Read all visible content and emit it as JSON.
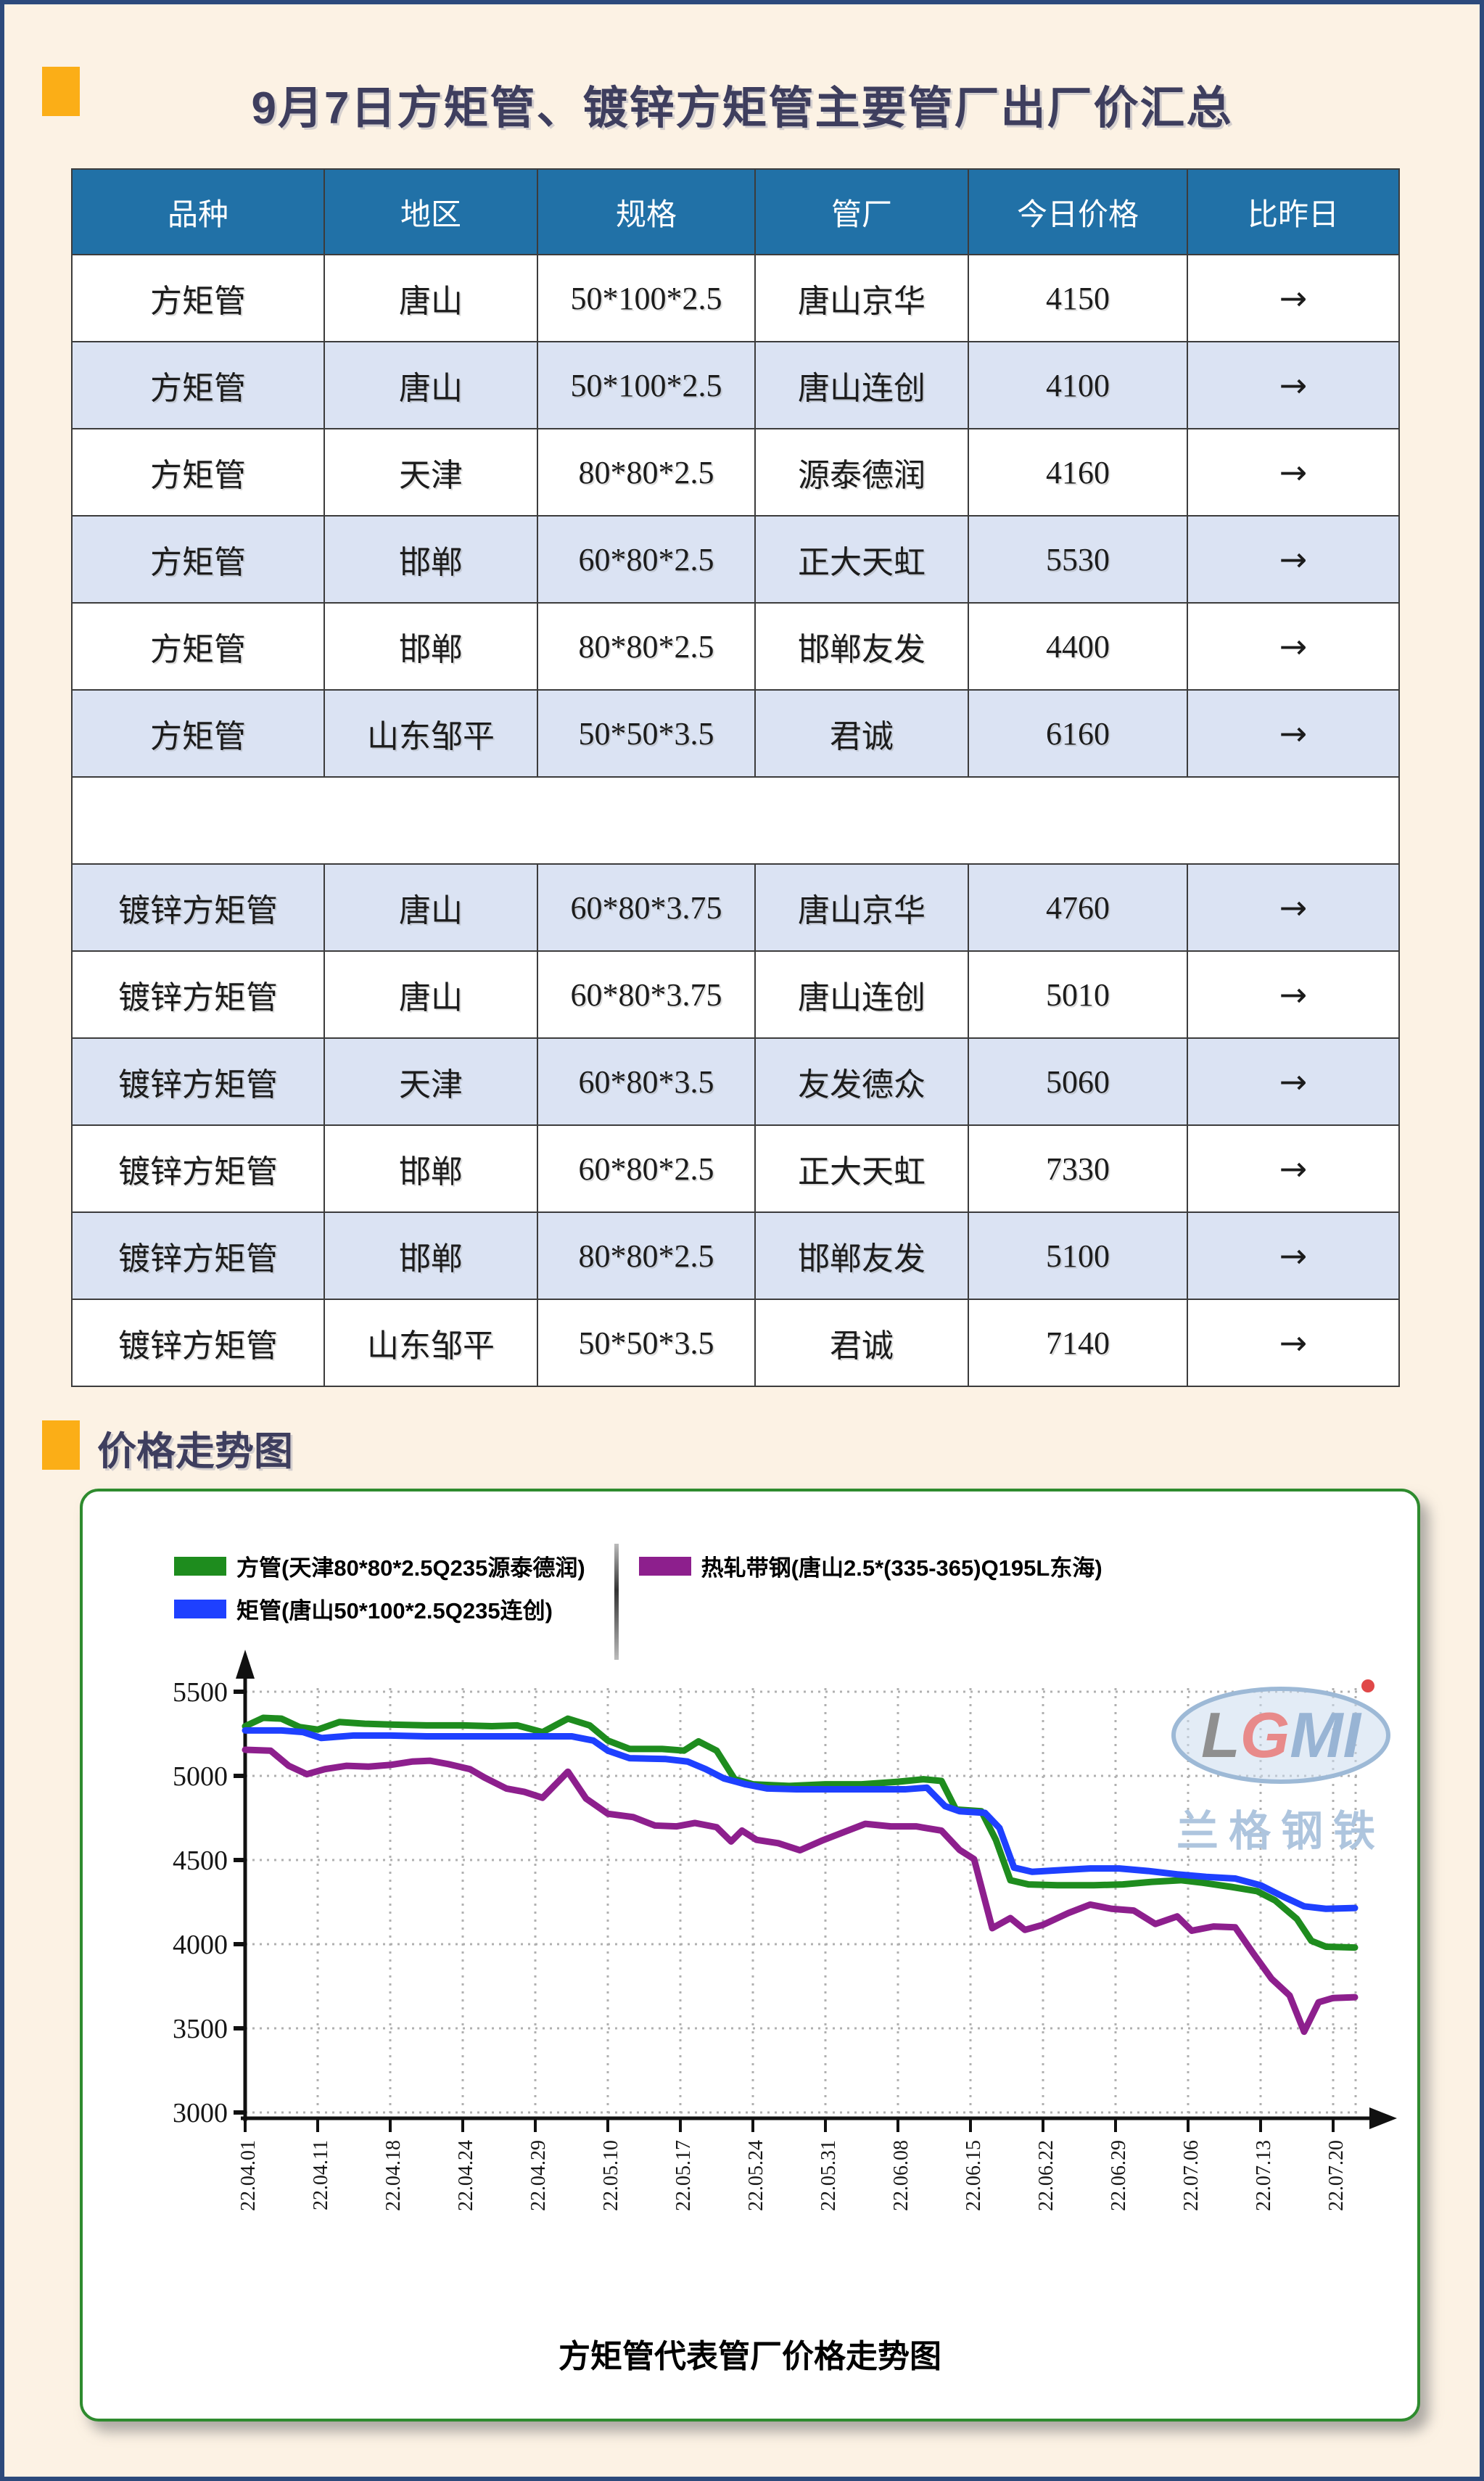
{
  "page": {
    "bg_color": "#fcf2e4",
    "frame_color": "#2c4a7c",
    "accent_color": "#fbae17",
    "title": "9月7日方矩管、镀锌方矩管主要管厂出厂价汇总",
    "title_color": "#3e3e5e",
    "section2_title": "价格走势图"
  },
  "table": {
    "header_bg": "#2171a7",
    "alt_row_bg": "#dbe3f3",
    "headers": [
      "品种",
      "地区",
      "规格",
      "管厂",
      "今日价格",
      "比昨日"
    ],
    "rows": [
      [
        "方矩管",
        "唐山",
        "50*100*2.5",
        "唐山京华",
        "4150",
        "→"
      ],
      [
        "方矩管",
        "唐山",
        "50*100*2.5",
        "唐山连创",
        "4100",
        "→"
      ],
      [
        "方矩管",
        "天津",
        "80*80*2.5",
        "源泰德润",
        "4160",
        "→"
      ],
      [
        "方矩管",
        "邯郸",
        "60*80*2.5",
        "正大天虹",
        "5530",
        "→"
      ],
      [
        "方矩管",
        "邯郸",
        "80*80*2.5",
        "邯郸友发",
        "4400",
        "→"
      ],
      [
        "方矩管",
        "山东邹平",
        "50*50*3.5",
        "君诚",
        "6160",
        "→"
      ],
      [],
      [
        "镀锌方矩管",
        "唐山",
        "60*80*3.75",
        "唐山京华",
        "4760",
        "→"
      ],
      [
        "镀锌方矩管",
        "唐山",
        "60*80*3.75",
        "唐山连创",
        "5010",
        "→"
      ],
      [
        "镀锌方矩管",
        "天津",
        "60*80*3.5",
        "友发德众",
        "5060",
        "→"
      ],
      [
        "镀锌方矩管",
        "邯郸",
        "60*80*2.5",
        "正大天虹",
        "7330",
        "→"
      ],
      [
        "镀锌方矩管",
        "邯郸",
        "80*80*2.5",
        "邯郸友发",
        "5100",
        "→"
      ],
      [
        "镀锌方矩管",
        "山东邹平",
        "50*50*3.5",
        "君诚",
        "7140",
        "→"
      ]
    ]
  },
  "chart_data": {
    "type": "line",
    "title": "方矩管代表管厂价格走势图",
    "xlabel": "",
    "ylabel": "",
    "ylim": [
      3000,
      5500
    ],
    "y_ticks": [
      3000,
      3500,
      4000,
      4500,
      5000,
      5500
    ],
    "x_tick_labels": [
      "22.04.01",
      "22.04.11",
      "22.04.18",
      "22.04.24",
      "22.04.29",
      "22.05.10",
      "22.05.17",
      "22.05.24",
      "22.05.31",
      "22.06.08",
      "22.06.15",
      "22.06.22",
      "22.06.29",
      "22.07.06",
      "22.07.13",
      "22.07.20"
    ],
    "grid": true,
    "legend_position": "top",
    "grid_color": "#b0b0b0",
    "series": [
      {
        "name": "方管(天津80*80*2.5Q235源泰德润)",
        "color": "#1e8c1e",
        "points": [
          [
            0,
            5295
          ],
          [
            0.25,
            5345
          ],
          [
            0.5,
            5340
          ],
          [
            0.75,
            5290
          ],
          [
            1,
            5275
          ],
          [
            1.3,
            5320
          ],
          [
            1.65,
            5310
          ],
          [
            2,
            5305
          ],
          [
            2.5,
            5300
          ],
          [
            3,
            5300
          ],
          [
            3.4,
            5295
          ],
          [
            3.75,
            5300
          ],
          [
            4.1,
            5260
          ],
          [
            4.45,
            5340
          ],
          [
            4.75,
            5300
          ],
          [
            5,
            5210
          ],
          [
            5.3,
            5160
          ],
          [
            5.75,
            5160
          ],
          [
            6.05,
            5150
          ],
          [
            6.25,
            5205
          ],
          [
            6.5,
            5150
          ],
          [
            6.75,
            4980
          ],
          [
            7,
            4950
          ],
          [
            7.5,
            4940
          ],
          [
            8,
            4950
          ],
          [
            8.5,
            4950
          ],
          [
            9,
            4965
          ],
          [
            9.35,
            4980
          ],
          [
            9.6,
            4970
          ],
          [
            9.8,
            4800
          ],
          [
            10.15,
            4790
          ],
          [
            10.35,
            4620
          ],
          [
            10.55,
            4380
          ],
          [
            10.8,
            4355
          ],
          [
            11.2,
            4350
          ],
          [
            11.7,
            4350
          ],
          [
            12.1,
            4355
          ],
          [
            12.5,
            4370
          ],
          [
            12.9,
            4380
          ],
          [
            13.2,
            4365
          ],
          [
            13.6,
            4340
          ],
          [
            13.95,
            4315
          ],
          [
            14.2,
            4260
          ],
          [
            14.5,
            4150
          ],
          [
            14.7,
            4020
          ],
          [
            14.9,
            3985
          ],
          [
            15.3,
            3980
          ]
        ]
      },
      {
        "name": "矩管(唐山50*100*2.5Q235连创)",
        "color": "#1e40ff",
        "points": [
          [
            0,
            5270
          ],
          [
            0.5,
            5270
          ],
          [
            0.8,
            5260
          ],
          [
            1.05,
            5225
          ],
          [
            1.5,
            5240
          ],
          [
            2,
            5240
          ],
          [
            2.5,
            5235
          ],
          [
            3,
            5235
          ],
          [
            3.5,
            5235
          ],
          [
            4,
            5235
          ],
          [
            4.5,
            5235
          ],
          [
            4.8,
            5210
          ],
          [
            5,
            5150
          ],
          [
            5.3,
            5105
          ],
          [
            5.8,
            5100
          ],
          [
            6.1,
            5085
          ],
          [
            6.35,
            5040
          ],
          [
            6.6,
            4985
          ],
          [
            6.9,
            4950
          ],
          [
            7.2,
            4925
          ],
          [
            7.6,
            4920
          ],
          [
            8.1,
            4920
          ],
          [
            8.6,
            4920
          ],
          [
            9.1,
            4920
          ],
          [
            9.4,
            4930
          ],
          [
            9.65,
            4820
          ],
          [
            9.85,
            4790
          ],
          [
            10.2,
            4780
          ],
          [
            10.4,
            4690
          ],
          [
            10.6,
            4455
          ],
          [
            10.85,
            4430
          ],
          [
            11.25,
            4440
          ],
          [
            11.65,
            4450
          ],
          [
            12.05,
            4450
          ],
          [
            12.45,
            4435
          ],
          [
            12.85,
            4415
          ],
          [
            13.25,
            4400
          ],
          [
            13.65,
            4390
          ],
          [
            14,
            4350
          ],
          [
            14.3,
            4285
          ],
          [
            14.6,
            4225
          ],
          [
            14.9,
            4210
          ],
          [
            15.3,
            4215
          ]
        ]
      },
      {
        "name": "热轧带钢(唐山2.5*(335-365)Q195L东海)",
        "color": "#8d1f8d",
        "points": [
          [
            0,
            5155
          ],
          [
            0.35,
            5150
          ],
          [
            0.6,
            5060
          ],
          [
            0.85,
            5010
          ],
          [
            1.1,
            5040
          ],
          [
            1.4,
            5060
          ],
          [
            1.7,
            5055
          ],
          [
            2,
            5065
          ],
          [
            2.3,
            5085
          ],
          [
            2.55,
            5090
          ],
          [
            2.8,
            5070
          ],
          [
            3.1,
            5040
          ],
          [
            3.3,
            4990
          ],
          [
            3.6,
            4925
          ],
          [
            3.85,
            4905
          ],
          [
            4.1,
            4870
          ],
          [
            4.45,
            5025
          ],
          [
            4.7,
            4865
          ],
          [
            5,
            4775
          ],
          [
            5.35,
            4755
          ],
          [
            5.65,
            4705
          ],
          [
            5.95,
            4700
          ],
          [
            6.2,
            4720
          ],
          [
            6.5,
            4695
          ],
          [
            6.7,
            4610
          ],
          [
            6.85,
            4675
          ],
          [
            7.05,
            4620
          ],
          [
            7.35,
            4600
          ],
          [
            7.65,
            4558
          ],
          [
            7.95,
            4615
          ],
          [
            8.25,
            4665
          ],
          [
            8.55,
            4715
          ],
          [
            8.9,
            4700
          ],
          [
            9.25,
            4700
          ],
          [
            9.6,
            4675
          ],
          [
            9.85,
            4560
          ],
          [
            10.05,
            4505
          ],
          [
            10.3,
            4095
          ],
          [
            10.55,
            4155
          ],
          [
            10.75,
            4085
          ],
          [
            11,
            4115
          ],
          [
            11.35,
            4185
          ],
          [
            11.65,
            4235
          ],
          [
            11.95,
            4210
          ],
          [
            12.25,
            4200
          ],
          [
            12.55,
            4120
          ],
          [
            12.85,
            4165
          ],
          [
            13.05,
            4080
          ],
          [
            13.35,
            4105
          ],
          [
            13.65,
            4100
          ],
          [
            13.9,
            3945
          ],
          [
            14.15,
            3795
          ],
          [
            14.4,
            3695
          ],
          [
            14.6,
            3480
          ],
          [
            14.8,
            3655
          ],
          [
            15,
            3680
          ],
          [
            15.3,
            3685
          ]
        ]
      }
    ]
  },
  "watermark": {
    "logo_text": "LGMI",
    "brand_text": "兰格钢铁",
    "ring_color": "#9db9d6",
    "fill_color": "#ccdcee",
    "letter_gray": "#8f8f8f",
    "letter_red": "#e88a8a",
    "letter_blue": "#98b4d4",
    "brand_color": "#aec5de",
    "dot_red": "#e04848"
  }
}
